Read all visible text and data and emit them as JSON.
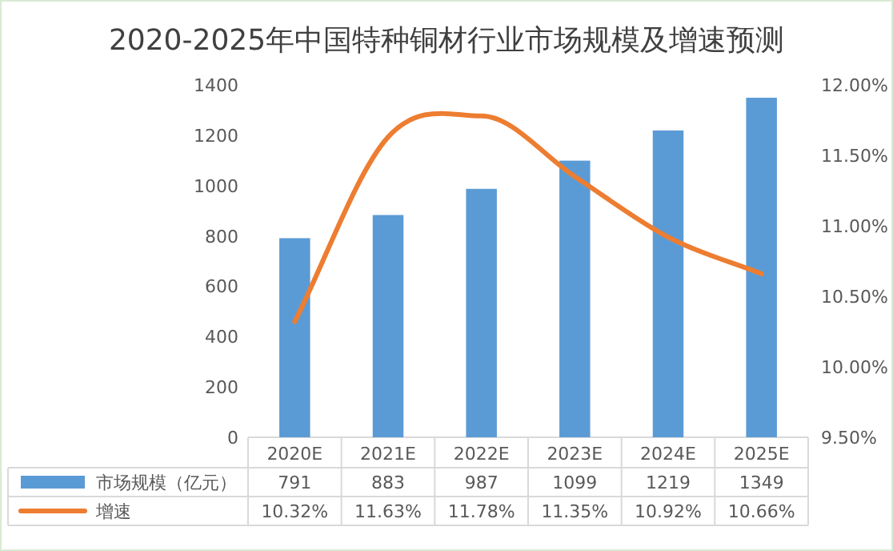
{
  "chart_data": {
    "type": "bar",
    "title": "2020-2025年中国特种铜材行业市场规模及增速预测",
    "categories": [
      "2020E",
      "2021E",
      "2022E",
      "2023E",
      "2024E",
      "2025E"
    ],
    "series": [
      {
        "name": "市场规模（亿元）",
        "color": "#5b9bd5",
        "values": [
          791,
          883,
          987,
          1099,
          1219,
          1349
        ],
        "value_labels": [
          "791",
          "883",
          "987",
          "1099",
          "1219",
          "1349"
        ]
      },
      {
        "name": "增速",
        "type": "line",
        "axis": "y2",
        "color": "#ed7d31",
        "values": [
          10.32,
          11.63,
          11.78,
          11.35,
          10.92,
          10.66
        ],
        "value_labels": [
          "10.32%",
          "11.63%",
          "11.78%",
          "11.35%",
          "10.92%",
          "10.66%"
        ]
      }
    ],
    "ylim": [
      0,
      1400
    ],
    "yticks": [
      0,
      200,
      400,
      600,
      800,
      1000,
      1200,
      1400
    ],
    "y2lim": [
      9.5,
      12.0
    ],
    "y2ticks": [
      {
        "value": 9.5,
        "label": "9.50%"
      },
      {
        "value": 10.0,
        "label": "10.00%"
      },
      {
        "value": 10.5,
        "label": "10.50%"
      },
      {
        "value": 11.0,
        "label": "11.00%"
      },
      {
        "value": 11.5,
        "label": "11.50%"
      },
      {
        "value": 12.0,
        "label": "12.00%"
      }
    ],
    "legend": "bottom",
    "grid": false
  }
}
